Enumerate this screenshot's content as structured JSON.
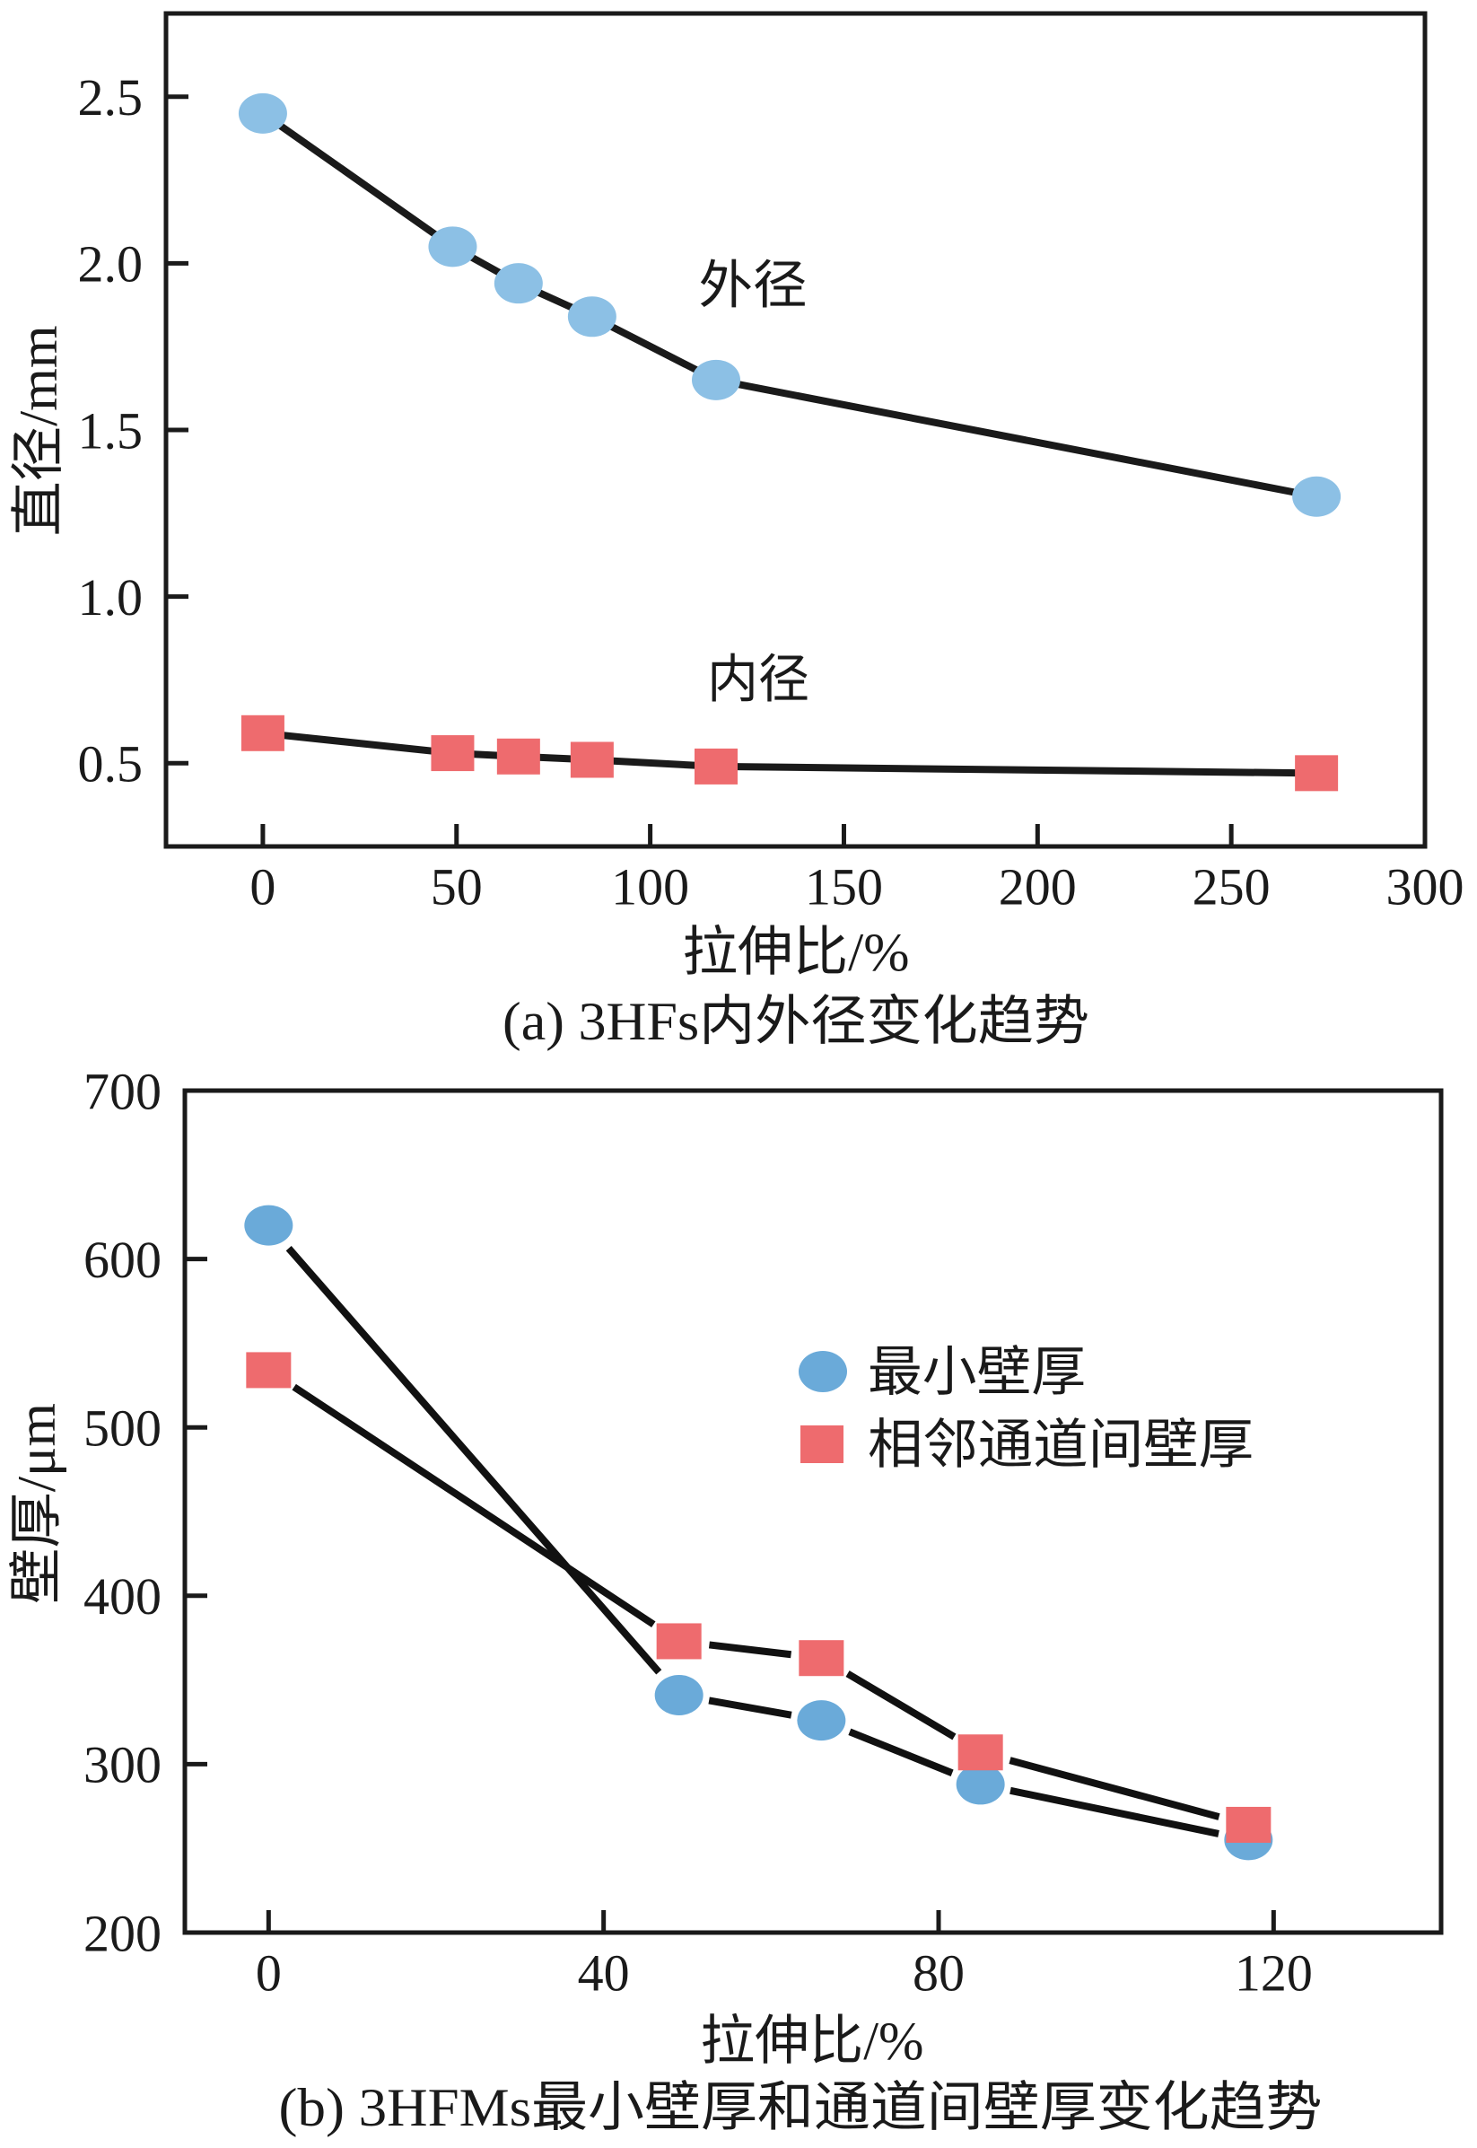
{
  "chart_data": [
    {
      "type": "line",
      "title": "(a) 3HFs内外径变化趋势",
      "xlabel": "拉伸比/%",
      "ylabel": "直径/mm",
      "xlim": [
        -25,
        300
      ],
      "ylim": [
        0.25,
        2.75
      ],
      "xticks": [
        0,
        50,
        100,
        150,
        200,
        250,
        300
      ],
      "xtick_labels": [
        "0",
        "50",
        "100",
        "150",
        "200",
        "250",
        "300"
      ],
      "yticks": [
        0.5,
        1.0,
        1.5,
        2.0,
        2.5
      ],
      "ytick_labels": [
        "0.5",
        "1.0",
        "1.5",
        "2.0",
        "2.5"
      ],
      "grid": false,
      "legend": "none",
      "annotations": [
        {
          "text": "外径"
        },
        {
          "text": "内径"
        }
      ],
      "series": [
        {
          "name": "外径",
          "marker": "circle",
          "color": "#8CC0E5",
          "line_color": "#1a1a1a",
          "x": [
            0,
            49,
            66,
            85,
            117,
            272
          ],
          "y": [
            2.45,
            2.05,
            1.94,
            1.84,
            1.65,
            1.3
          ]
        },
        {
          "name": "内径",
          "marker": "square",
          "color": "#EE6B6E",
          "line_color": "#1a1a1a",
          "x": [
            0,
            49,
            66,
            85,
            117,
            272
          ],
          "y": [
            0.59,
            0.53,
            0.52,
            0.51,
            0.49,
            0.47
          ]
        }
      ]
    },
    {
      "type": "line",
      "title": "(b) 3HFMs最小壁厚和通道间壁厚变化趋势",
      "xlabel": "拉伸比/%",
      "ylabel": "壁厚/μm",
      "xlim": [
        -10,
        140
      ],
      "ylim": [
        200,
        700
      ],
      "xticks": [
        0,
        40,
        80,
        120
      ],
      "xtick_labels": [
        "0",
        "40",
        "80",
        "120"
      ],
      "yticks": [
        200,
        300,
        400,
        500,
        600,
        700
      ],
      "ytick_labels": [
        "200",
        "300",
        "400",
        "500",
        "600",
        "700"
      ],
      "grid": false,
      "legend": "upper-right",
      "series": [
        {
          "name": "最小壁厚",
          "marker": "circle",
          "color": "#6AAAD9",
          "line_color": "#111111",
          "x": [
            0,
            49,
            66,
            85,
            117
          ],
          "y": [
            620,
            341,
            326,
            288,
            255
          ]
        },
        {
          "name": "相邻通道间壁厚",
          "marker": "square",
          "color": "#EE6B6E",
          "line_color": "#111111",
          "x": [
            0,
            49,
            66,
            85,
            117
          ],
          "y": [
            534,
            373,
            363,
            307,
            264
          ]
        }
      ]
    }
  ]
}
